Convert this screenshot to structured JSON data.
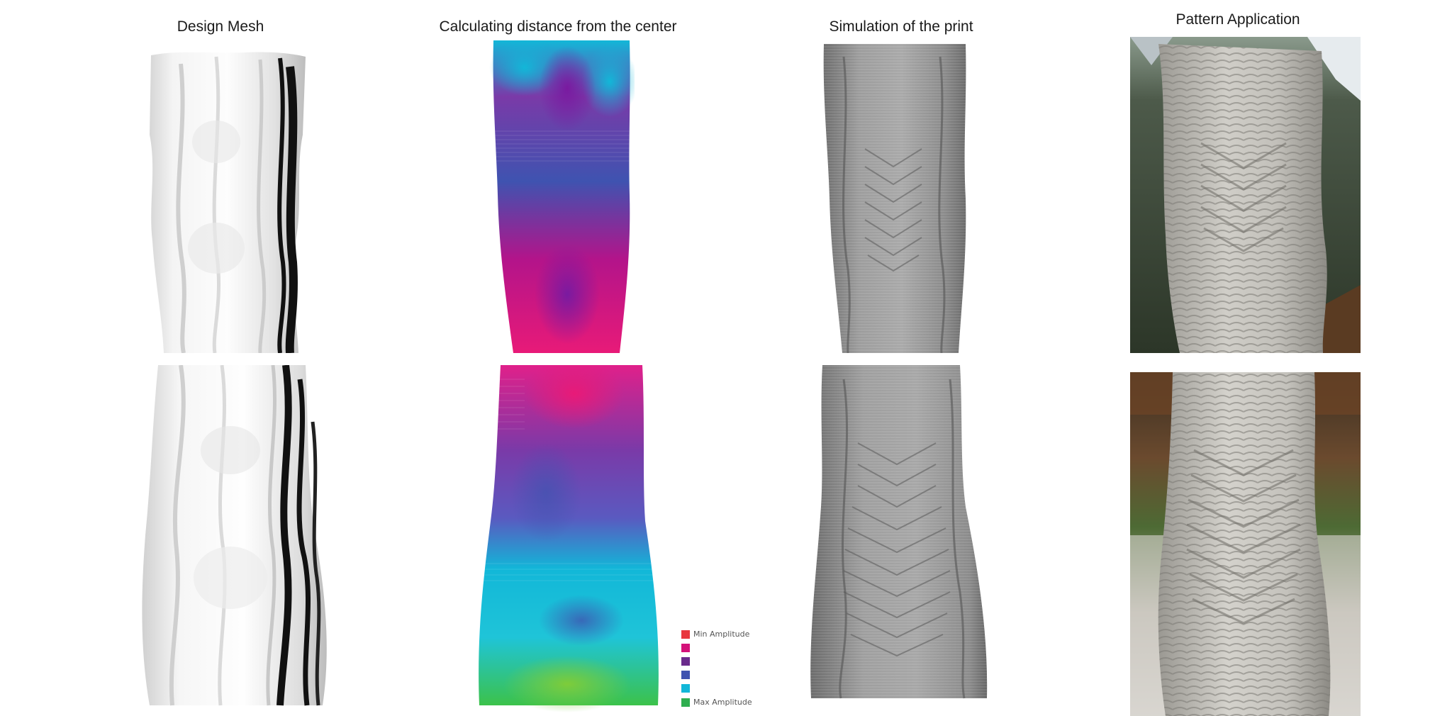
{
  "columns": [
    {
      "title": "Design Mesh"
    },
    {
      "title": "Calculating distance from the center"
    },
    {
      "title": "Simulation of the print"
    },
    {
      "title": "Pattern Application"
    }
  ],
  "legend": {
    "items": [
      {
        "label": "Min Amplitude",
        "color": "#e8373e"
      },
      {
        "label": "",
        "color": "#d4127a"
      },
      {
        "label": "",
        "color": "#6a2b8c"
      },
      {
        "label": "",
        "color": "#3f53b0"
      },
      {
        "label": "",
        "color": "#12b7d8"
      },
      {
        "label": "Max Amplitude",
        "color": "#2fae4f"
      }
    ]
  }
}
